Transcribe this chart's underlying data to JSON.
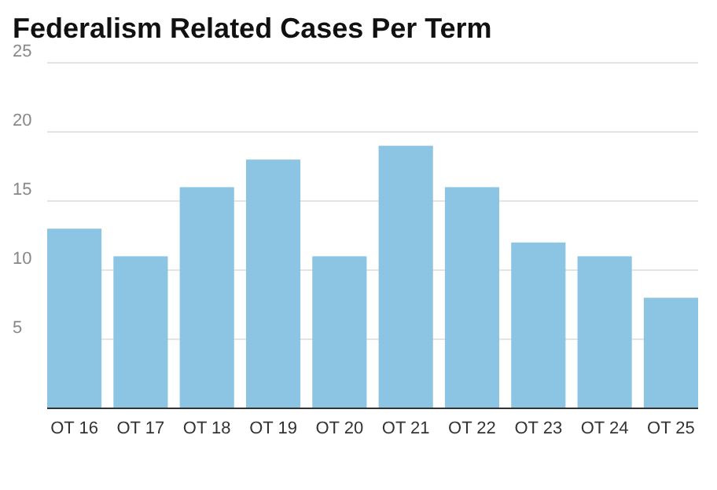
{
  "chart_data": {
    "type": "bar",
    "title": "Federalism Related Cases Per Term",
    "categories": [
      "OT 16",
      "OT 17",
      "OT 18",
      "OT 19",
      "OT 20",
      "OT 21",
      "OT 22",
      "OT 23",
      "OT 24",
      "OT 25"
    ],
    "values": [
      13,
      11,
      16,
      18,
      11,
      19,
      16,
      12,
      11,
      8
    ],
    "color": "#8cc4e4",
    "ylim": [
      0,
      25
    ],
    "yticks": [
      5,
      10,
      15,
      20,
      25
    ],
    "grid": "y"
  }
}
